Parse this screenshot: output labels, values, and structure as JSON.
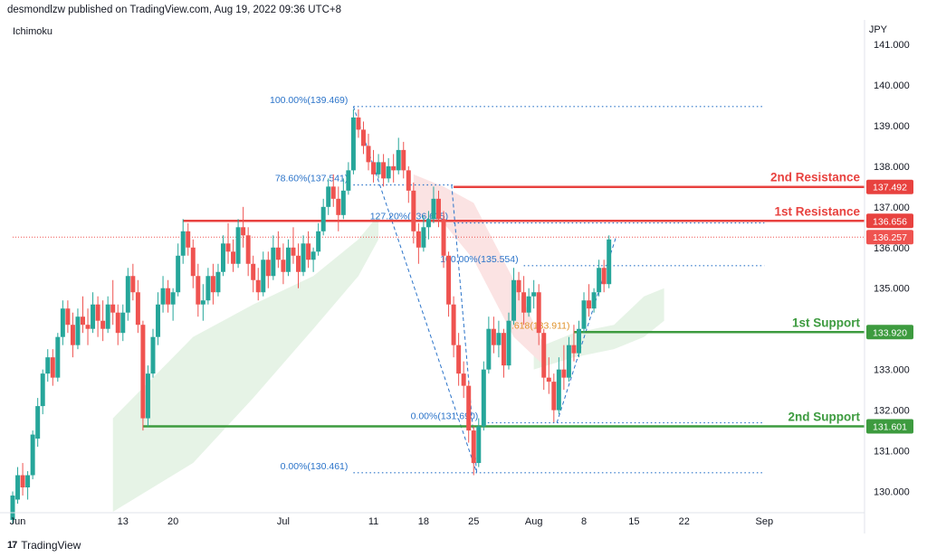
{
  "header": {
    "publisher_line": "desmondlzw published on TradingView.com, Aug 19, 2022 09:36 UTC+8",
    "indicator_name": "Ichimoku",
    "currency": "JPY"
  },
  "footer": {
    "brand": "TradingView",
    "logo_icon": "tradingview-logo-icon"
  },
  "colors": {
    "bull": "#26a69a",
    "bear": "#ef5350",
    "resistance": "#e8423f",
    "support": "#3d9b3f",
    "fib": "#2a73c9",
    "cloud_green": "#e6f3e6",
    "cloud_red": "#fbe3e3",
    "last_price_tag": "#ef5350"
  },
  "chart_data": {
    "type": "candlestick",
    "y_range": [
      129.5,
      141.2
    ],
    "x_range": [
      0,
      85
    ],
    "price_ticks": [
      "130.000",
      "131.000",
      "132.000",
      "133.000",
      "134.000",
      "135.000",
      "136.000",
      "137.000",
      "138.000",
      "139.000",
      "140.000",
      "141.000"
    ],
    "price_tick_values": [
      130,
      131,
      132,
      133,
      134,
      135,
      136,
      137,
      138,
      139,
      140,
      141
    ],
    "time_ticks": [
      {
        "label": "Jun",
        "x": 0.5
      },
      {
        "label": "13",
        "x": 11
      },
      {
        "label": "20",
        "x": 16
      },
      {
        "label": "Jul",
        "x": 27
      },
      {
        "label": "11",
        "x": 36
      },
      {
        "label": "18",
        "x": 41
      },
      {
        "label": "25",
        "x": 46
      },
      {
        "label": "Aug",
        "x": 52
      },
      {
        "label": "8",
        "x": 57
      },
      {
        "label": "15",
        "x": 62
      },
      {
        "label": "22",
        "x": 67
      },
      {
        "label": "Sep",
        "x": 75
      }
    ],
    "candles": [
      [
        0,
        129.3,
        130.0,
        129.2,
        129.9
      ],
      [
        0.5,
        129.8,
        130.6,
        129.7,
        130.4
      ],
      [
        1,
        130.4,
        130.7,
        129.9,
        130.1
      ],
      [
        1.5,
        130.1,
        130.5,
        129.8,
        130.4
      ],
      [
        2,
        130.4,
        131.5,
        130.3,
        131.4
      ],
      [
        2.5,
        131.3,
        132.3,
        131.1,
        132.1
      ],
      [
        3,
        132.1,
        133.0,
        131.9,
        132.9
      ],
      [
        3.5,
        132.9,
        133.5,
        132.7,
        133.3
      ],
      [
        4,
        133.3,
        133.5,
        132.6,
        132.8
      ],
      [
        4.5,
        132.8,
        133.9,
        132.7,
        133.8
      ],
      [
        5,
        133.8,
        134.7,
        133.6,
        134.5
      ],
      [
        5.5,
        134.5,
        134.7,
        133.9,
        134.1
      ],
      [
        6,
        134.1,
        134.4,
        133.3,
        133.6
      ],
      [
        6.5,
        133.6,
        134.5,
        133.5,
        134.3
      ],
      [
        7,
        134.3,
        134.8,
        133.9,
        134.1
      ],
      [
        7.5,
        134.1,
        134.5,
        133.6,
        134.0
      ],
      [
        8,
        134.0,
        134.9,
        133.9,
        134.6
      ],
      [
        8.5,
        134.6,
        134.8,
        133.8,
        134.2
      ],
      [
        9,
        134.2,
        134.7,
        133.7,
        134.0
      ],
      [
        9.5,
        134.0,
        134.8,
        133.9,
        134.6
      ],
      [
        10,
        134.6,
        135.2,
        134.1,
        134.4
      ],
      [
        10.5,
        134.4,
        134.6,
        133.6,
        133.9
      ],
      [
        11,
        133.9,
        134.6,
        133.7,
        134.4
      ],
      [
        11.5,
        134.4,
        135.5,
        134.2,
        135.3
      ],
      [
        12,
        135.3,
        135.6,
        134.7,
        134.9
      ],
      [
        12.5,
        134.9,
        135.2,
        133.9,
        134.1
      ],
      [
        13,
        134.1,
        134.2,
        131.5,
        131.8
      ],
      [
        13.5,
        131.8,
        133.1,
        131.6,
        132.9
      ],
      [
        14,
        132.9,
        134.0,
        132.8,
        133.8
      ],
      [
        14.5,
        133.8,
        134.9,
        133.6,
        134.6
      ],
      [
        15,
        134.6,
        135.3,
        134.4,
        135.0
      ],
      [
        15.5,
        135.0,
        135.2,
        134.4,
        134.6
      ],
      [
        16,
        134.6,
        135.0,
        134.2,
        134.9
      ],
      [
        16.5,
        134.9,
        136.1,
        134.8,
        135.8
      ],
      [
        17,
        135.8,
        136.7,
        135.6,
        136.4
      ],
      [
        17.5,
        136.4,
        136.6,
        135.8,
        136.0
      ],
      [
        18,
        136.0,
        136.2,
        135.0,
        135.3
      ],
      [
        18.5,
        135.3,
        135.6,
        134.3,
        134.6
      ],
      [
        19,
        134.6,
        135.1,
        134.2,
        134.7
      ],
      [
        19.5,
        134.7,
        135.5,
        134.6,
        135.3
      ],
      [
        20,
        135.3,
        135.6,
        134.6,
        134.9
      ],
      [
        20.5,
        134.9,
        135.6,
        134.8,
        135.4
      ],
      [
        21,
        135.4,
        136.3,
        135.3,
        136.1
      ],
      [
        21.5,
        136.1,
        136.6,
        135.6,
        135.9
      ],
      [
        22,
        135.9,
        136.2,
        135.4,
        135.6
      ],
      [
        22.5,
        135.6,
        136.7,
        135.5,
        136.5
      ],
      [
        23,
        136.5,
        137.0,
        136.0,
        136.3
      ],
      [
        23.5,
        136.3,
        136.5,
        135.3,
        135.6
      ],
      [
        24,
        135.6,
        135.8,
        134.9,
        135.2
      ],
      [
        24.5,
        135.2,
        135.5,
        134.7,
        134.9
      ],
      [
        25,
        134.9,
        135.9,
        134.8,
        135.7
      ],
      [
        25.5,
        135.7,
        135.9,
        135.0,
        135.3
      ],
      [
        26,
        135.3,
        136.3,
        135.2,
        136.0
      ],
      [
        26.5,
        136.0,
        136.4,
        135.5,
        135.7
      ],
      [
        27,
        135.7,
        136.1,
        135.1,
        135.4
      ],
      [
        27.5,
        135.4,
        136.2,
        135.3,
        136.0
      ],
      [
        28,
        136.0,
        136.5,
        135.6,
        135.8
      ],
      [
        28.5,
        135.8,
        136.1,
        135.0,
        135.4
      ],
      [
        29,
        135.4,
        136.3,
        135.3,
        136.1
      ],
      [
        29.5,
        136.1,
        136.4,
        135.5,
        135.7
      ],
      [
        30,
        135.7,
        136.0,
        135.4,
        135.9
      ],
      [
        30.5,
        135.9,
        136.6,
        135.8,
        136.4
      ],
      [
        31,
        136.4,
        137.2,
        136.3,
        137.0
      ],
      [
        31.5,
        137.0,
        137.7,
        136.8,
        137.5
      ],
      [
        32,
        137.5,
        137.8,
        137.0,
        137.2
      ],
      [
        32.5,
        137.2,
        137.5,
        136.4,
        136.8
      ],
      [
        33,
        136.8,
        137.7,
        136.7,
        137.4
      ],
      [
        33.5,
        137.4,
        138.1,
        137.3,
        137.9
      ],
      [
        34,
        137.9,
        139.4,
        137.8,
        139.2
      ],
      [
        34.5,
        139.2,
        139.4,
        138.7,
        138.9
      ],
      [
        35,
        138.9,
        139.1,
        138.3,
        138.5
      ],
      [
        35.5,
        138.5,
        138.8,
        137.9,
        138.1
      ],
      [
        36,
        138.1,
        138.4,
        137.6,
        137.8
      ],
      [
        36.5,
        137.8,
        138.3,
        137.7,
        138.1
      ],
      [
        37,
        138.1,
        138.3,
        137.5,
        137.7
      ],
      [
        37.5,
        137.7,
        138.2,
        137.6,
        138.0
      ],
      [
        38,
        138.0,
        138.3,
        137.6,
        137.9
      ],
      [
        38.5,
        137.9,
        138.7,
        137.8,
        138.4
      ],
      [
        39,
        138.4,
        138.6,
        137.7,
        137.9
      ],
      [
        39.5,
        137.9,
        138.0,
        137.1,
        137.4
      ],
      [
        40,
        137.4,
        137.6,
        136.1,
        136.4
      ],
      [
        40.5,
        136.4,
        136.6,
        135.6,
        136.0
      ],
      [
        41,
        136.0,
        136.8,
        135.9,
        136.5
      ],
      [
        41.5,
        136.5,
        136.9,
        136.2,
        136.7
      ],
      [
        42,
        136.7,
        137.5,
        136.6,
        137.2
      ],
      [
        42.5,
        137.2,
        137.4,
        136.5,
        136.7
      ],
      [
        43,
        136.7,
        136.9,
        135.5,
        135.8
      ],
      [
        43.5,
        135.8,
        135.9,
        134.3,
        134.6
      ],
      [
        44,
        134.6,
        134.8,
        133.3,
        133.6
      ],
      [
        44.5,
        133.6,
        133.9,
        132.6,
        132.9
      ],
      [
        45,
        132.9,
        133.2,
        132.3,
        132.6
      ],
      [
        45.5,
        132.6,
        132.7,
        131.2,
        131.5
      ],
      [
        46,
        131.5,
        131.6,
        130.4,
        130.7
      ],
      [
        46.5,
        130.7,
        131.8,
        130.6,
        131.6
      ],
      [
        47,
        131.6,
        133.2,
        131.5,
        133.0
      ],
      [
        47.5,
        133.0,
        134.3,
        132.9,
        134.0
      ],
      [
        48,
        134.0,
        134.3,
        133.4,
        133.6
      ],
      [
        48.5,
        133.6,
        134.2,
        133.3,
        133.9
      ],
      [
        49,
        133.9,
        134.0,
        132.8,
        133.1
      ],
      [
        49.5,
        133.1,
        134.4,
        133.0,
        134.2
      ],
      [
        50,
        134.2,
        135.5,
        134.1,
        135.2
      ],
      [
        50.5,
        135.2,
        135.4,
        134.7,
        134.9
      ],
      [
        51,
        134.9,
        135.3,
        134.1,
        134.4
      ],
      [
        51.5,
        134.4,
        135.0,
        134.3,
        134.8
      ],
      [
        52,
        134.8,
        135.2,
        134.5,
        134.9
      ],
      [
        52.5,
        134.9,
        135.1,
        133.6,
        133.9
      ],
      [
        53,
        133.9,
        134.0,
        132.5,
        132.8
      ],
      [
        53.5,
        132.8,
        133.3,
        132.4,
        132.7
      ],
      [
        54,
        132.7,
        132.9,
        131.7,
        132.0
      ],
      [
        54.5,
        132.0,
        133.3,
        131.9,
        133.0
      ],
      [
        55,
        133.0,
        133.6,
        132.5,
        132.8
      ],
      [
        55.5,
        132.8,
        133.8,
        132.7,
        133.6
      ],
      [
        56,
        133.6,
        134.1,
        133.2,
        133.4
      ],
      [
        56.5,
        133.4,
        134.2,
        133.3,
        134.0
      ],
      [
        57,
        134.0,
        134.9,
        133.9,
        134.7
      ],
      [
        57.5,
        134.7,
        135.1,
        134.3,
        134.5
      ],
      [
        58,
        134.5,
        135.0,
        134.4,
        134.9
      ],
      [
        58.5,
        134.9,
        135.7,
        134.8,
        135.5
      ],
      [
        59,
        135.5,
        135.7,
        134.9,
        135.1
      ],
      [
        59.5,
        135.1,
        136.3,
        135.0,
        136.2
      ]
    ],
    "cloud_green_bands": [
      {
        "x": [
          10,
          18,
          24,
          30,
          34.5,
          36.5
        ],
        "upper": [
          131.8,
          133.8,
          134.6,
          135.3,
          136.2,
          136.8
        ],
        "lower": [
          129.5,
          130.7,
          132.3,
          134.0,
          135.3,
          136.2
        ]
      },
      {
        "x": [
          52,
          56,
          60,
          63,
          65
        ],
        "upper": [
          133.5,
          133.9,
          134.1,
          134.8,
          135.0
        ],
        "lower": [
          133.0,
          133.3,
          133.5,
          133.8,
          134.2
        ]
      }
    ],
    "cloud_red_bands": [
      {
        "x": [
          40,
          43,
          46,
          50,
          53
        ],
        "upper": [
          137.8,
          137.5,
          137.1,
          135.2,
          133.6
        ],
        "lower": [
          136.8,
          136.6,
          135.7,
          133.8,
          133.1
        ]
      }
    ],
    "fib_levels": [
      {
        "label": "100.00%(139.469)",
        "price": 139.469,
        "x1": 34,
        "x2": 75
      },
      {
        "label": "78.60%(137.541)",
        "price": 137.541,
        "x1": 34,
        "x2": 44
      },
      {
        "label": "0.00%(130.461)",
        "price": 130.461,
        "x1": 34,
        "x2": 75
      },
      {
        "label": "127.20%(136.605)",
        "price": 136.605,
        "x1": 44,
        "x2": 75
      },
      {
        "label": "100.00%(135.554)",
        "price": 135.554,
        "x1": 51,
        "x2": 75
      },
      {
        "label": "0.00%(131.690)",
        "price": 131.69,
        "x1": 47,
        "x2": 75
      }
    ],
    "fib_partial_label": {
      "label": "0.618(133.911)",
      "price": 133.911
    },
    "support_resistance": [
      {
        "label": "2nd Resistance",
        "value": 137.492,
        "tag": "137.492",
        "kind": "resistance",
        "x1": 44
      },
      {
        "label": "1st Resistance",
        "value": 136.656,
        "tag": "136.656",
        "kind": "resistance",
        "x1": 17
      },
      {
        "label": "1st Support",
        "value": 133.92,
        "tag": "133.920",
        "kind": "support",
        "x1": 56
      },
      {
        "label": "2nd Support",
        "value": 131.601,
        "tag": "131.601",
        "kind": "support",
        "x1": 13
      }
    ],
    "last_price": {
      "value": 136.257,
      "tag": "136.257"
    },
    "fib_connectors": [
      {
        "from": [
          34.0,
          139.469
        ],
        "to": [
          46.3,
          130.461
        ]
      },
      {
        "from": [
          43.8,
          137.541
        ],
        "to": [
          46.3,
          130.461
        ]
      },
      {
        "from": [
          54.3,
          131.69
        ],
        "to": [
          60.2,
          136.257
        ]
      }
    ]
  }
}
